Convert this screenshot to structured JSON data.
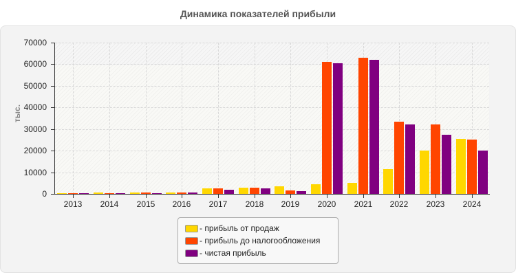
{
  "title": "Динамика показателей прибыли",
  "chart_data": {
    "type": "bar",
    "title": "Динамика показателей прибыли",
    "xlabel": "",
    "ylabel": "тыс.",
    "ylim": [
      0,
      70000
    ],
    "yticks": [
      0,
      10000,
      20000,
      30000,
      40000,
      50000,
      60000,
      70000
    ],
    "grid": true,
    "legend_position": "bottom",
    "categories": [
      "2013",
      "2014",
      "2015",
      "2016",
      "2017",
      "2018",
      "2019",
      "2020",
      "2021",
      "2022",
      "2023",
      "2024"
    ],
    "series": [
      {
        "name": "прибыль от продаж",
        "color": "#ffd700",
        "values": [
          300,
          600,
          600,
          600,
          2500,
          2800,
          3500,
          4300,
          5200,
          11500,
          20000,
          25500
        ]
      },
      {
        "name": "прибыль до налогообложения",
        "color": "#ff4500",
        "values": [
          350,
          350,
          600,
          600,
          2600,
          2900,
          1500,
          61000,
          63000,
          33500,
          32000,
          25000
        ]
      },
      {
        "name": "чистая прибыль",
        "color": "#800080",
        "values": [
          300,
          350,
          350,
          700,
          1900,
          2600,
          1200,
          60500,
          62000,
          32000,
          27500,
          20000
        ]
      }
    ]
  },
  "legend": {
    "items": [
      {
        "label": "- прибыль от продаж",
        "color": "#ffd700"
      },
      {
        "label": "- прибыль до налогообложения",
        "color": "#ff4500"
      },
      {
        "label": "- чистая прибыль",
        "color": "#800080"
      }
    ]
  }
}
